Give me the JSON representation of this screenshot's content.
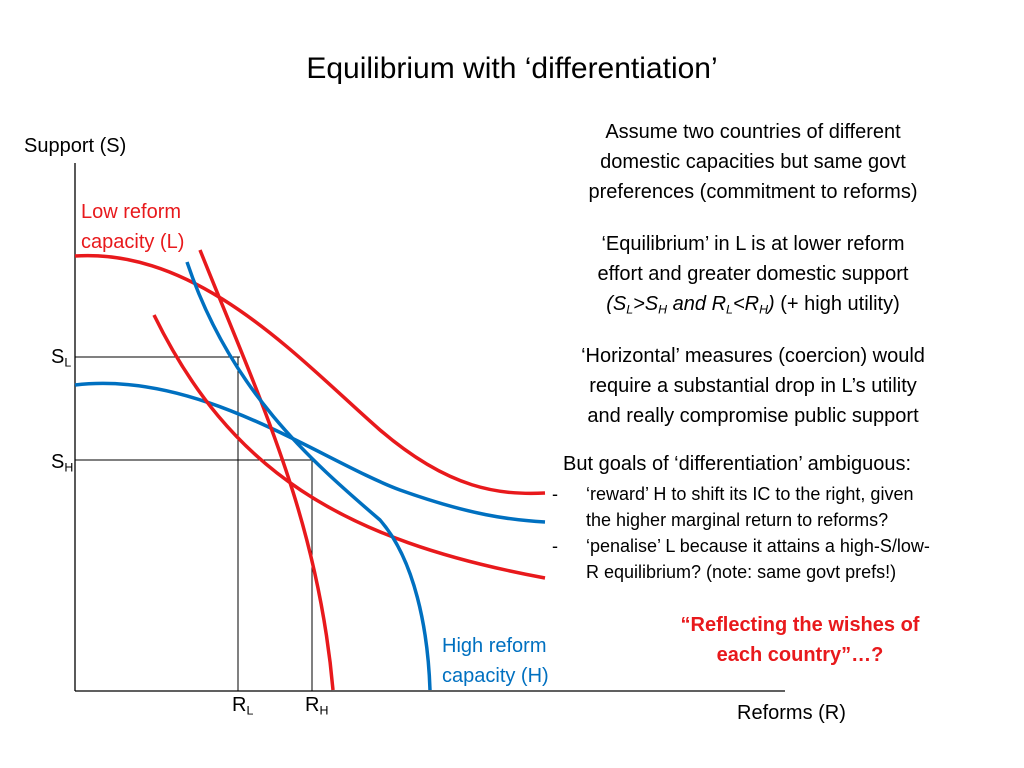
{
  "title": "Equilibrium with ‘differentiation’",
  "axes": {
    "y_label": "Support (S)",
    "x_label": "Reforms (R)"
  },
  "ticks": {
    "s_l": {
      "main": "S",
      "sub": "L"
    },
    "s_h": {
      "main": "S",
      "sub": "H"
    },
    "r_l": {
      "main": "R",
      "sub": "L"
    },
    "r_h": {
      "main": "R",
      "sub": "H"
    }
  },
  "curve_labels": {
    "low": [
      "Low reform",
      "capacity (L)"
    ],
    "high": [
      "High reform",
      "capacity (H)"
    ]
  },
  "text": {
    "p1": [
      "Assume two countries of different",
      "domestic capacities but same govt",
      "preferences (commitment to reforms)"
    ],
    "p2_line1": "‘Equilibrium’ in L is at lower reform",
    "p2_line2": "effort and greater domestic support",
    "p2_line3": {
      "open": "(S",
      "sl": "L",
      "gt": ">S",
      "sh": "H",
      "and": " and R",
      "rl": "L",
      "lt": "<R",
      "rh": "H",
      "close": ")",
      "tail": " (+ high utility)"
    },
    "p3": [
      "‘Horizontal’ measures (coercion) would",
      "require a substantial drop in L’s utility",
      "and really compromise public support"
    ],
    "goals_heading": "But goals of ‘differentiation’ ambiguous:",
    "goals": [
      {
        "dash": "-",
        "lines": [
          "‘reward’ H to shift its IC to the right, given",
          "the higher marginal return to reforms?"
        ]
      },
      {
        "dash": "-",
        "lines": [
          "‘penalise’ L because it attains a high-S/low-",
          "R equilibrium? (note: same govt prefs!)"
        ]
      }
    ],
    "quote": [
      "“Reflecting the wishes of",
      "each country”…?"
    ]
  },
  "colors": {
    "low": "#e8191c",
    "high": "#0070c0",
    "axis": "#000000"
  }
}
